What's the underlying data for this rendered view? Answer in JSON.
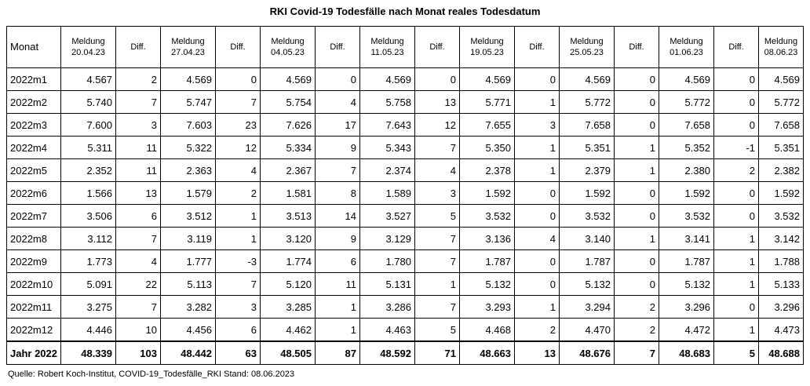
{
  "title": "RKI Covid-19 Todesfälle nach Monat reales Todesdatum",
  "header": {
    "monat": "Monat",
    "columns": [
      {
        "type": "meldung",
        "label": "Meldung",
        "date": "20.04.23"
      },
      {
        "type": "diff",
        "label": "Diff."
      },
      {
        "type": "meldung",
        "label": "Meldung",
        "date": "27.04.23"
      },
      {
        "type": "diff",
        "label": "Diff."
      },
      {
        "type": "meldung",
        "label": "Meldung",
        "date": "04.05.23"
      },
      {
        "type": "diff",
        "label": "Diff."
      },
      {
        "type": "meldung",
        "label": "Meldung",
        "date": "11.05.23"
      },
      {
        "type": "diff",
        "label": "Diff."
      },
      {
        "type": "meldung",
        "label": "Meldung",
        "date": "19.05.23"
      },
      {
        "type": "diff",
        "label": "Diff."
      },
      {
        "type": "meldung",
        "label": "Meldung",
        "date": "25.05.23"
      },
      {
        "type": "diff",
        "label": "Diff."
      },
      {
        "type": "meldung",
        "label": "Meldung",
        "date": "01.06.23"
      },
      {
        "type": "diff",
        "label": "Diff."
      },
      {
        "type": "meldung",
        "label": "Meldung",
        "date": "08.06.23"
      }
    ]
  },
  "rows": [
    {
      "month": "2022m1",
      "cells": [
        "4.567",
        "2",
        "4.569",
        "0",
        "4.569",
        "0",
        "4.569",
        "0",
        "4.569",
        "0",
        "4.569",
        "0",
        "4.569",
        "0",
        "4.569"
      ]
    },
    {
      "month": "2022m2",
      "cells": [
        "5.740",
        "7",
        "5.747",
        "7",
        "5.754",
        "4",
        "5.758",
        "13",
        "5.771",
        "1",
        "5.772",
        "0",
        "5.772",
        "0",
        "5.772"
      ]
    },
    {
      "month": "2022m3",
      "cells": [
        "7.600",
        "3",
        "7.603",
        "23",
        "7.626",
        "17",
        "7.643",
        "12",
        "7.655",
        "3",
        "7.658",
        "0",
        "7.658",
        "0",
        "7.658"
      ]
    },
    {
      "month": "2022m4",
      "cells": [
        "5.311",
        "11",
        "5.322",
        "12",
        "5.334",
        "9",
        "5.343",
        "7",
        "5.350",
        "1",
        "5.351",
        "1",
        "5.352",
        "-1",
        "5.351"
      ]
    },
    {
      "month": "2022m5",
      "cells": [
        "2.352",
        "11",
        "2.363",
        "4",
        "2.367",
        "7",
        "2.374",
        "4",
        "2.378",
        "1",
        "2.379",
        "1",
        "2.380",
        "2",
        "2.382"
      ]
    },
    {
      "month": "2022m6",
      "cells": [
        "1.566",
        "13",
        "1.579",
        "2",
        "1.581",
        "8",
        "1.589",
        "3",
        "1.592",
        "0",
        "1.592",
        "0",
        "1.592",
        "0",
        "1.592"
      ]
    },
    {
      "month": "2022m7",
      "cells": [
        "3.506",
        "6",
        "3.512",
        "1",
        "3.513",
        "14",
        "3.527",
        "5",
        "3.532",
        "0",
        "3.532",
        "0",
        "3.532",
        "0",
        "3.532"
      ]
    },
    {
      "month": "2022m8",
      "cells": [
        "3.112",
        "7",
        "3.119",
        "1",
        "3.120",
        "9",
        "3.129",
        "7",
        "3.136",
        "4",
        "3.140",
        "1",
        "3.141",
        "1",
        "3.142"
      ]
    },
    {
      "month": "2022m9",
      "cells": [
        "1.773",
        "4",
        "1.777",
        "-3",
        "1.774",
        "6",
        "1.780",
        "7",
        "1.787",
        "0",
        "1.787",
        "0",
        "1.787",
        "1",
        "1.788"
      ]
    },
    {
      "month": "2022m10",
      "cells": [
        "5.091",
        "22",
        "5.113",
        "7",
        "5.120",
        "11",
        "5.131",
        "1",
        "5.132",
        "0",
        "5.132",
        "0",
        "5.132",
        "1",
        "5.133"
      ]
    },
    {
      "month": "2022m11",
      "cells": [
        "3.275",
        "7",
        "3.282",
        "3",
        "3.285",
        "1",
        "3.286",
        "7",
        "3.293",
        "1",
        "3.294",
        "2",
        "3.296",
        "0",
        "3.296"
      ]
    },
    {
      "month": "2022m12",
      "cells": [
        "4.446",
        "10",
        "4.456",
        "6",
        "4.462",
        "1",
        "4.463",
        "5",
        "4.468",
        "2",
        "4.470",
        "2",
        "4.472",
        "1",
        "4.473"
      ]
    }
  ],
  "total": {
    "month": "Jahr 2022",
    "cells": [
      "48.339",
      "103",
      "48.442",
      "63",
      "48.505",
      "87",
      "48.592",
      "71",
      "48.663",
      "13",
      "48.676",
      "7",
      "48.683",
      "5",
      "48.688"
    ]
  },
  "source": "Quelle: Robert Koch-Institut, COVID-19_Todesfälle_RKI Stand: 08.06.2023"
}
